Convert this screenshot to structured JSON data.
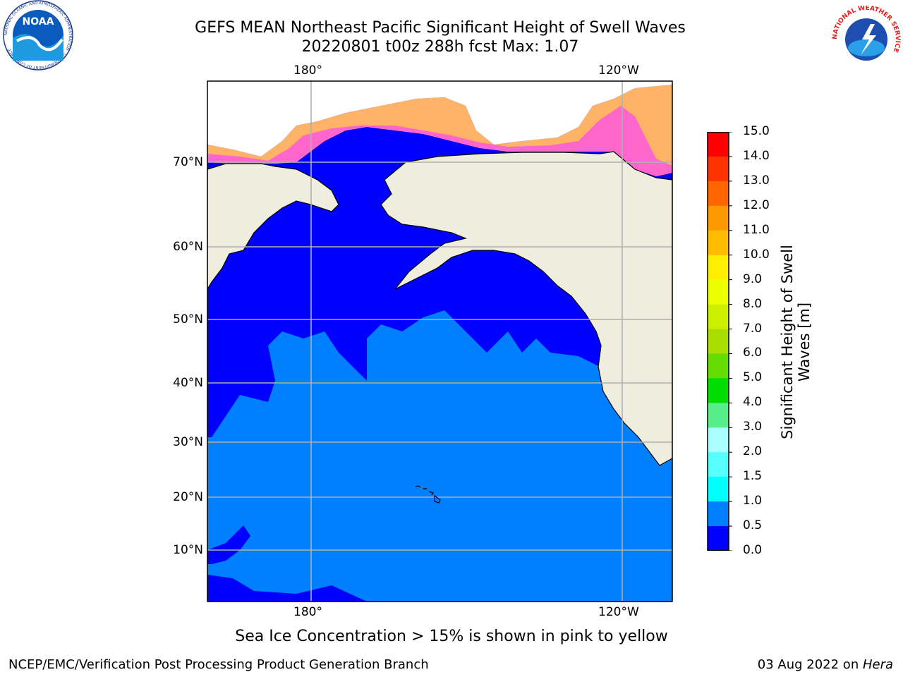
{
  "header": {
    "title": "GEFS MEAN Northeast Pacific Significant Height of Swell Waves",
    "subtitle": "20220801 t00z 288h fcst   Max: 1.07"
  },
  "logos": {
    "left": "NOAA",
    "left_ring": "NATIONAL OCEANIC AND ATMOSPHERIC ADMINISTRATION · U.S. DEPARTMENT OF COMMERCE",
    "right_ring": "NATIONAL WEATHER SERVICE"
  },
  "map": {
    "lon_labels": [
      "180°",
      "120°W"
    ],
    "lat_labels": [
      "70°N",
      "60°N",
      "50°N",
      "40°N",
      "30°N",
      "20°N",
      "10°N"
    ],
    "colors": {
      "land": "#efedde",
      "ocean_low": "#0000ff",
      "ocean_mid": "#0080ff",
      "ice": "#ff66cc",
      "ice_edge": "#ffb366",
      "grid": "#b0b0b0"
    }
  },
  "colorbar": {
    "ticks": [
      "15.0",
      "14.0",
      "13.0",
      "12.0",
      "11.0",
      "10.0",
      "9.0",
      "8.0",
      "7.0",
      "6.0",
      "5.0",
      "4.0",
      "3.0",
      "2.0",
      "1.5",
      "1.0",
      "0.5",
      "0.0"
    ],
    "colors": [
      "#ff0000",
      "#ff3300",
      "#ff6600",
      "#ff9900",
      "#ffbb00",
      "#ffee00",
      "#eeff00",
      "#ccee00",
      "#aadd00",
      "#66dd00",
      "#00dd00",
      "#55ee88",
      "#aaffff",
      "#55ffff",
      "#00ffff",
      "#0080ff",
      "#0000ff"
    ],
    "label": "Significant Height of Swell Waves [m]"
  },
  "footer": {
    "note": "Sea Ice Concentration > 15% is shown in pink to yellow",
    "left": "NCEP/EMC/Verification Post Processing Product Generation Branch",
    "right_date": "03 Aug 2022 on ",
    "right_host": "Hera"
  }
}
